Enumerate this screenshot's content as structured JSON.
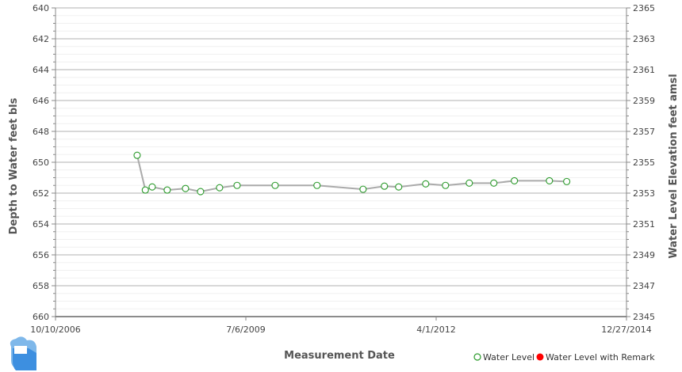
{
  "chart_data": {
    "type": "line",
    "title": "",
    "xlabel": "Measurement Date",
    "ylabel": "Depth to Water feet bls",
    "y2label": "Water Level Elevation feet amsl",
    "xlim": [
      "2006-10-10",
      "2014-12-27"
    ],
    "x_ticks": [
      "10/10/2006",
      "7/6/2009",
      "4/1/2012",
      "12/27/2014"
    ],
    "ylim": [
      660,
      640
    ],
    "y_inverted": true,
    "y_ticks": [
      "640",
      "642",
      "644",
      "646",
      "648",
      "650",
      "652",
      "654",
      "656",
      "658",
      "660"
    ],
    "y2lim": [
      2345,
      2365
    ],
    "y2_ticks": [
      "2365",
      "2363",
      "2361",
      "2359",
      "2357",
      "2355",
      "2353",
      "2351",
      "2349",
      "2347",
      "2345"
    ],
    "grid": true,
    "legend_position": "bottom-right",
    "legend": [
      {
        "name": "Water Level",
        "marker": "open-circle",
        "color": "#2a9a2a"
      },
      {
        "name": "Water Level with Remark",
        "marker": "filled-circle",
        "color": "#ff0000"
      }
    ],
    "line_color": "#aaaaaa",
    "series": [
      {
        "name": "Water Level",
        "points": [
          {
            "x": "2007-12-13",
            "y": 649.55
          },
          {
            "x": "2008-01-25",
            "y": 651.8
          },
          {
            "x": "2008-03-01",
            "y": 651.6
          },
          {
            "x": "2008-05-19",
            "y": 651.8
          },
          {
            "x": "2008-08-23",
            "y": 651.7
          },
          {
            "x": "2008-11-10",
            "y": 651.9
          },
          {
            "x": "2009-02-18",
            "y": 651.65
          },
          {
            "x": "2009-05-21",
            "y": 651.5
          },
          {
            "x": "2009-12-07",
            "y": 651.5
          },
          {
            "x": "2010-07-15",
            "y": 651.5
          },
          {
            "x": "2011-03-14",
            "y": 651.75
          },
          {
            "x": "2011-07-04",
            "y": 651.55
          },
          {
            "x": "2011-09-17",
            "y": 651.6
          },
          {
            "x": "2012-02-06",
            "y": 651.4
          },
          {
            "x": "2012-05-20",
            "y": 651.5
          },
          {
            "x": "2012-09-22",
            "y": 651.35
          },
          {
            "x": "2013-01-29",
            "y": 651.35
          },
          {
            "x": "2013-05-17",
            "y": 651.2
          },
          {
            "x": "2013-11-17",
            "y": 651.2
          },
          {
            "x": "2014-02-16",
            "y": 651.25
          }
        ]
      }
    ]
  }
}
